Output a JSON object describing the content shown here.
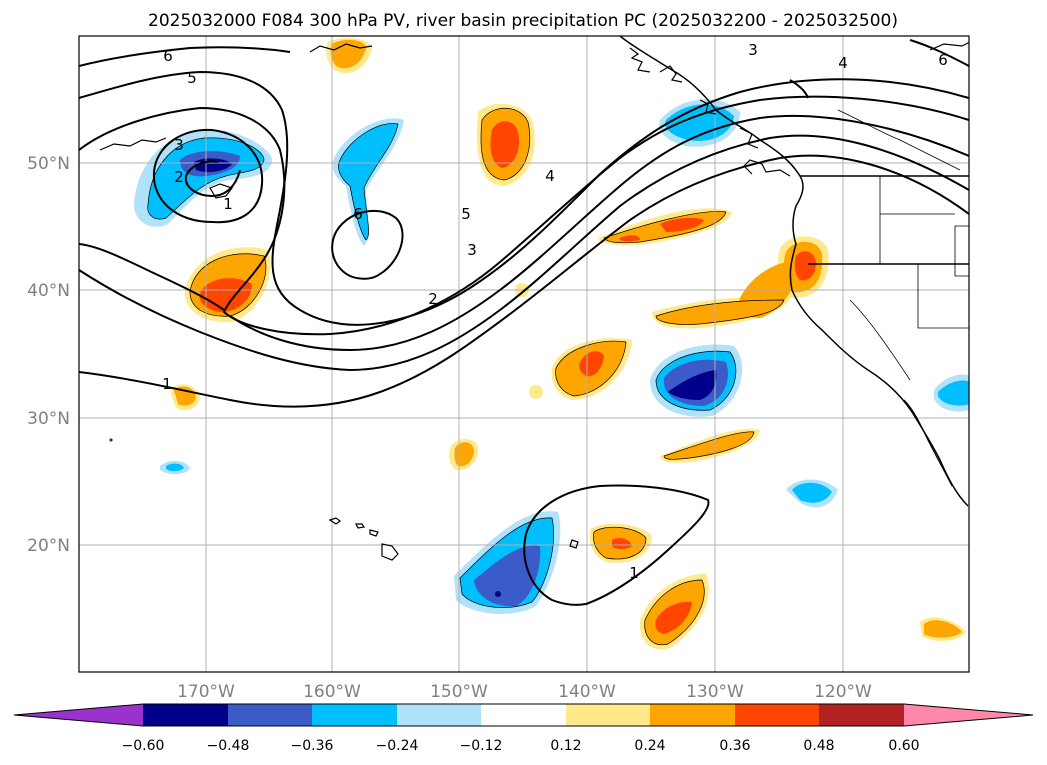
{
  "title": "2025032000 F084 300 hPa PV, river basin precipitation PC (2025032200 - 2025032500)",
  "lon_labels": [
    "170°W",
    "160°W",
    "150°W",
    "140°W",
    "130°W",
    "120°W"
  ],
  "lat_labels": [
    "50°N",
    "40°N",
    "30°N",
    "20°N"
  ],
  "contour_labels": [
    "6",
    "5",
    "3",
    "2",
    "1",
    "6",
    "5",
    "4",
    "3",
    "2",
    "1",
    "3",
    "4",
    "6",
    "1"
  ],
  "colorbar": {
    "tick_labels": [
      "−0.60",
      "−0.48",
      "−0.36",
      "−0.24",
      "−0.12",
      "0.12",
      "0.24",
      "0.36",
      "0.48",
      "0.60"
    ],
    "colors": [
      "#9933cc",
      "#00008b",
      "#3a5bc8",
      "#00bfff",
      "#b0e2fa",
      "#ffffff",
      "#ffe98a",
      "#ffa500",
      "#ff4500",
      "#b22222",
      "#ff88aa"
    ]
  },
  "colors": {
    "dark_blue": "#00008b",
    "mid_blue": "#3a5bc8",
    "cyan": "#00bfff",
    "light_blue": "#b0e2fa",
    "light_yellow": "#ffe98a",
    "orange": "#ffa500",
    "red_orange": "#ff4500",
    "grid": "#b0b0b0"
  }
}
